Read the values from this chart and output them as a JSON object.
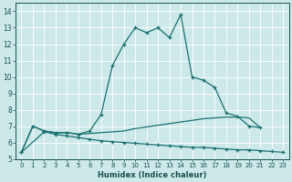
{
  "xlabel": "Humidex (Indice chaleur)",
  "x_ticks": [
    0,
    1,
    2,
    3,
    4,
    5,
    6,
    7,
    8,
    9,
    10,
    11,
    12,
    13,
    14,
    15,
    16,
    17,
    18,
    19,
    20,
    21,
    22,
    23
  ],
  "y_ticks": [
    5,
    6,
    7,
    8,
    9,
    10,
    11,
    12,
    13,
    14
  ],
  "xlim": [
    -0.5,
    23.5
  ],
  "ylim": [
    5.0,
    14.5
  ],
  "bg_color": "#cce8e8",
  "grid_color": "#ffffff",
  "line_color": "#1a7070",
  "curve1_x": [
    0,
    1,
    2,
    3,
    4,
    5,
    6,
    7,
    8,
    9,
    10,
    11,
    12,
    13,
    14,
    15,
    16,
    17,
    18,
    19,
    20,
    21
  ],
  "curve1_y": [
    5.4,
    7.0,
    6.7,
    6.6,
    6.6,
    6.5,
    6.7,
    7.7,
    10.7,
    12.0,
    13.0,
    12.7,
    13.0,
    12.4,
    13.8,
    10.0,
    9.8,
    9.35,
    7.8,
    7.6,
    7.0,
    6.9
  ],
  "curve2_x": [
    0,
    1,
    2,
    3,
    4,
    5,
    6,
    7,
    8,
    9,
    10,
    11,
    12,
    13,
    14,
    15,
    16,
    17,
    18,
    19,
    20,
    21
  ],
  "curve2_y": [
    5.4,
    7.0,
    6.7,
    6.6,
    6.6,
    6.5,
    6.55,
    6.6,
    6.65,
    6.7,
    6.85,
    6.95,
    7.05,
    7.15,
    7.25,
    7.35,
    7.45,
    7.5,
    7.55,
    7.55,
    7.5,
    6.9
  ],
  "curve3_x": [
    0,
    2,
    3,
    4,
    5,
    6,
    7,
    8,
    9,
    10,
    11,
    12,
    13,
    14,
    15,
    16,
    17,
    18,
    19,
    20,
    21,
    22,
    23
  ],
  "curve3_y": [
    5.4,
    6.65,
    6.5,
    6.4,
    6.3,
    6.2,
    6.1,
    6.05,
    6.0,
    5.95,
    5.9,
    5.85,
    5.8,
    5.75,
    5.7,
    5.7,
    5.65,
    5.6,
    5.55,
    5.55,
    5.5,
    5.45,
    5.4
  ]
}
